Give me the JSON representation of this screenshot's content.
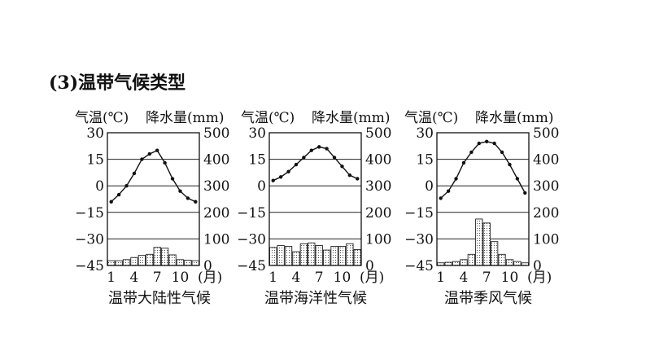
{
  "heading": "(3)温带气候类型",
  "chart_data": [
    {
      "type": "line+bar",
      "title": "温带大陆性气候",
      "y_left_label": "气温(℃)",
      "y_right_label": "降水量(mm)",
      "x_unit_label": "(月)",
      "x_tick_labels": [
        "1",
        "4",
        "7",
        "10"
      ],
      "y_left_ticks": [
        "30",
        "15",
        "0",
        "−15",
        "−30",
        "−45"
      ],
      "y_right_ticks": [
        "500",
        "400",
        "300",
        "200",
        "100",
        "0"
      ],
      "ylim_temp": [
        -45,
        30
      ],
      "ylim_precip": [
        0,
        500
      ],
      "months": [
        1,
        2,
        3,
        4,
        5,
        6,
        7,
        8,
        9,
        10,
        11,
        12
      ],
      "temperature": [
        -9,
        -5,
        0,
        7,
        15,
        18,
        20,
        13,
        4,
        -3,
        -7,
        -9
      ],
      "precipitation": [
        18,
        18,
        22,
        30,
        38,
        42,
        68,
        65,
        40,
        22,
        20,
        18
      ],
      "grid": "horizontal"
    },
    {
      "type": "line+bar",
      "title": "温带海洋性气候",
      "y_left_label": "气温(℃)",
      "y_right_label": "降水量(mm)",
      "x_unit_label": "(月)",
      "x_tick_labels": [
        "1",
        "4",
        "7",
        "10"
      ],
      "y_left_ticks": [
        "30",
        "15",
        "0",
        "−15",
        "−30",
        "−45"
      ],
      "y_right_ticks": [
        "500",
        "400",
        "300",
        "200",
        "100",
        "0"
      ],
      "ylim_temp": [
        -45,
        30
      ],
      "ylim_precip": [
        0,
        500
      ],
      "months": [
        1,
        2,
        3,
        4,
        5,
        6,
        7,
        8,
        9,
        10,
        11,
        12
      ],
      "temperature": [
        3,
        5,
        8,
        12,
        16,
        20,
        22,
        21,
        16,
        11,
        6,
        4
      ],
      "precipitation": [
        68,
        75,
        72,
        52,
        82,
        85,
        75,
        58,
        72,
        72,
        82,
        60
      ],
      "grid": "horizontal"
    },
    {
      "type": "line+bar",
      "title": "温带季风气候",
      "y_left_label": "气温(℃)",
      "y_right_label": "降水量(mm)",
      "x_unit_label": "(月)",
      "x_tick_labels": [
        "1",
        "4",
        "7",
        "10"
      ],
      "y_left_ticks": [
        "30",
        "15",
        "0",
        "−15",
        "−30",
        "−45"
      ],
      "y_right_ticks": [
        "500",
        "400",
        "300",
        "200",
        "100",
        "0"
      ],
      "ylim_temp": [
        -45,
        30
      ],
      "ylim_precip": [
        0,
        500
      ],
      "months": [
        1,
        2,
        3,
        4,
        5,
        6,
        7,
        8,
        9,
        10,
        11,
        12
      ],
      "temperature": [
        -7,
        -3,
        4,
        13,
        19,
        24,
        25,
        24,
        19,
        12,
        4,
        -4
      ],
      "precipitation": [
        10,
        12,
        15,
        22,
        42,
        175,
        160,
        90,
        42,
        22,
        15,
        10
      ],
      "grid": "horizontal"
    }
  ]
}
